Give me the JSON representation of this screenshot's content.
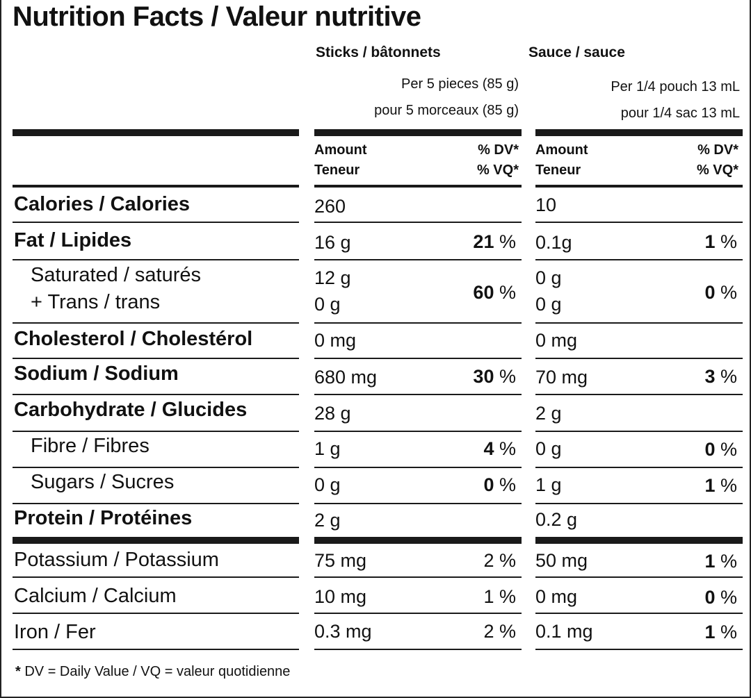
{
  "title": "Nutrition Facts / Valeur nutritive",
  "columns": {
    "sticks": {
      "label": "Sticks / bâtonnets",
      "serving_en": "Per 5 pieces (85 g)",
      "serving_fr": "pour 5 morceaux (85 g)"
    },
    "sauce": {
      "label": "Sauce / sauce",
      "serving_en": "Per 1/4 pouch 13 mL",
      "serving_fr": "pour 1/4 sac 13 mL"
    },
    "amount_label": "Amount",
    "amount_label_fr": "Teneur",
    "dv_label": "% DV*",
    "dv_label_fr": "% VQ*"
  },
  "rows": [
    {
      "name": "Calories / Calories",
      "sticks": "260",
      "sticks_dv": "",
      "sauce": "10",
      "sauce_dv": ""
    },
    {
      "name": "Fat / Lipides",
      "sticks": "16 g",
      "sticks_dv": "21",
      "sauce": "0.1g",
      "sauce_dv": "1"
    },
    {
      "name": "Saturated / saturés",
      "name2": "+ Trans / trans",
      "sticks": "12 g",
      "sticks2": "0 g",
      "sticks_dv": "60",
      "sauce": "0 g",
      "sauce2": "0 g",
      "sauce_dv": "0"
    },
    {
      "name": "Cholesterol / Cholestérol",
      "sticks": "0 mg",
      "sticks_dv": "",
      "sauce": "0 mg",
      "sauce_dv": ""
    },
    {
      "name": "Sodium / Sodium",
      "sticks": "680 mg",
      "sticks_dv": "30",
      "sauce": "70 mg",
      "sauce_dv": "3"
    },
    {
      "name": "Carbohydrate / Glucides",
      "sticks": "28 g",
      "sticks_dv": "",
      "sauce": "2 g",
      "sauce_dv": ""
    },
    {
      "name": "Fibre / Fibres",
      "sticks": "1 g",
      "sticks_dv": "4",
      "sauce": "0 g",
      "sauce_dv": "0"
    },
    {
      "name": "Sugars / Sucres",
      "sticks": "0 g",
      "sticks_dv": "0",
      "sauce": "1 g",
      "sauce_dv": "1"
    },
    {
      "name": "Protein / Protéines",
      "sticks": "2 g",
      "sticks_dv": "",
      "sauce": "0.2 g",
      "sauce_dv": ""
    },
    {
      "name": "Potassium / Potassium",
      "sticks": "75 mg",
      "sticks_dv": "2",
      "sauce": "50 mg",
      "sauce_dv": "1"
    },
    {
      "name": "Calcium / Calcium",
      "sticks": "10 mg",
      "sticks_dv": "1",
      "sauce": "0 mg",
      "sauce_dv": "0"
    },
    {
      "name": "Iron / Fer",
      "sticks": "0.3 mg",
      "sticks_dv": "2",
      "sauce": "0.1 mg",
      "sauce_dv": "1"
    }
  ],
  "percent_sign": "%",
  "footnote_star": "*",
  "footnote": "DV = Daily Value / VQ = valeur quotidienne"
}
